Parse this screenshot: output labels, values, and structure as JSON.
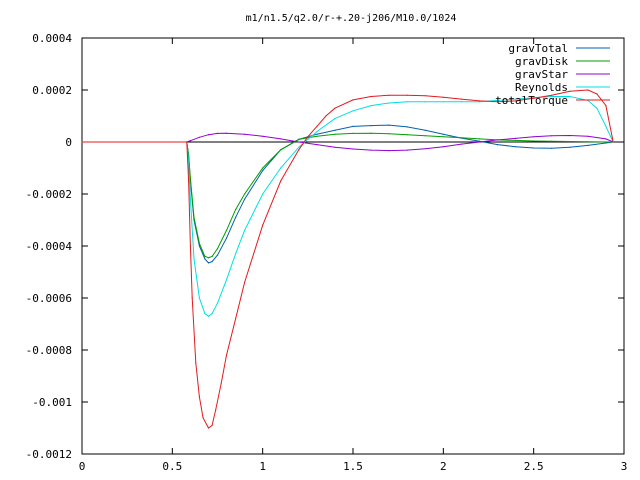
{
  "chart_data": {
    "type": "line",
    "title": "m1/n1.5/q2.0/r-+.20-j206/M10.0/1024",
    "xlabel": "",
    "ylabel": "",
    "xlim": [
      0,
      3
    ],
    "ylim": [
      -0.0012,
      0.0004
    ],
    "x_ticks": [
      0,
      0.5,
      1,
      1.5,
      2,
      2.5,
      3
    ],
    "x_tick_labels": [
      "0",
      "0.5",
      "1",
      "1.5",
      "2",
      "2.5",
      "3"
    ],
    "y_ticks": [
      0.0004,
      0.0002,
      0,
      -0.0002,
      -0.0004,
      -0.0006,
      -0.0008,
      -0.001,
      -0.0012
    ],
    "y_tick_labels": [
      "0.0004",
      "0.0002",
      "0",
      "-0.0002",
      "-0.0004",
      "-0.0006",
      "-0.0008",
      "-0.001",
      "-0.0012"
    ],
    "grid": false,
    "legend_position": "top-right",
    "series": [
      {
        "name": "gravTotal",
        "color": "#0060ad",
        "x": [
          0,
          0.58,
          0.59,
          0.6,
          0.62,
          0.65,
          0.68,
          0.7,
          0.72,
          0.75,
          0.8,
          0.85,
          0.9,
          1.0,
          1.1,
          1.2,
          1.3,
          1.4,
          1.5,
          1.6,
          1.7,
          1.8,
          1.9,
          2.0,
          2.1,
          2.2,
          2.3,
          2.4,
          2.5,
          2.6,
          2.7,
          2.8,
          2.9,
          2.94
        ],
        "values": [
          0,
          0,
          -5e-05,
          -0.00015,
          -0.0003,
          -0.0004,
          -0.00045,
          -0.000465,
          -0.00046,
          -0.000435,
          -0.00037,
          -0.00029,
          -0.00022,
          -0.00011,
          -3e-05,
          1e-05,
          3e-05,
          4.5e-05,
          6e-05,
          6.3e-05,
          6.5e-05,
          5.8e-05,
          4.5e-05,
          3e-05,
          1.5e-05,
          3e-06,
          -1e-05,
          -1.8e-05,
          -2.3e-05,
          -2.4e-05,
          -2e-05,
          -1.3e-05,
          -4e-06,
          0
        ]
      },
      {
        "name": "gravDisk",
        "color": "#009e00",
        "x": [
          0,
          0.58,
          0.59,
          0.6,
          0.62,
          0.65,
          0.68,
          0.7,
          0.72,
          0.75,
          0.8,
          0.85,
          0.9,
          1.0,
          1.1,
          1.2,
          1.3,
          1.4,
          1.5,
          1.6,
          1.7,
          1.8,
          1.9,
          2.0,
          2.1,
          2.2,
          2.3,
          2.4,
          2.5,
          2.6,
          2.7,
          2.8,
          2.9,
          2.94
        ],
        "values": [
          0,
          0,
          -5e-05,
          -0.00014,
          -0.00029,
          -0.00039,
          -0.00044,
          -0.000445,
          -0.00044,
          -0.00041,
          -0.00034,
          -0.00026,
          -0.0002,
          -0.0001,
          -3e-05,
          1e-05,
          2.2e-05,
          3e-05,
          3.3e-05,
          3.4e-05,
          3.2e-05,
          2.8e-05,
          2.4e-05,
          2e-05,
          1.6e-05,
          1.2e-05,
          8e-06,
          6e-06,
          4e-06,
          3e-06,
          2e-06,
          1e-06,
          0,
          0
        ]
      },
      {
        "name": "gravStar",
        "color": "#9400d3",
        "x": [
          0,
          0.58,
          0.6,
          0.65,
          0.7,
          0.75,
          0.8,
          0.9,
          1.0,
          1.1,
          1.2,
          1.3,
          1.4,
          1.5,
          1.6,
          1.7,
          1.8,
          1.9,
          2.0,
          2.1,
          2.2,
          2.3,
          2.4,
          2.5,
          2.6,
          2.7,
          2.8,
          2.9,
          2.94
        ],
        "values": [
          0,
          0,
          5e-06,
          1.8e-05,
          2.8e-05,
          3.3e-05,
          3.4e-05,
          3e-05,
          2.2e-05,
          1.2e-05,
          0,
          -1e-05,
          -2e-05,
          -2.7e-05,
          -3.1e-05,
          -3.3e-05,
          -3.1e-05,
          -2.6e-05,
          -1.8e-05,
          -8e-06,
          0,
          8e-06,
          1.4e-05,
          2e-05,
          2.4e-05,
          2.5e-05,
          2.2e-05,
          1.2e-05,
          0
        ]
      },
      {
        "name": "Reynolds",
        "color": "#00dfdf",
        "x": [
          0,
          0.58,
          0.59,
          0.6,
          0.62,
          0.65,
          0.68,
          0.7,
          0.72,
          0.75,
          0.8,
          0.85,
          0.9,
          1.0,
          1.1,
          1.2,
          1.3,
          1.4,
          1.5,
          1.6,
          1.7,
          1.8,
          1.9,
          2.0,
          2.1,
          2.2,
          2.3,
          2.4,
          2.5,
          2.6,
          2.7,
          2.8,
          2.85,
          2.9,
          2.94
        ],
        "values": [
          0,
          0,
          -8e-05,
          -0.00022,
          -0.00045,
          -0.0006,
          -0.00066,
          -0.00067,
          -0.00066,
          -0.00062,
          -0.00053,
          -0.00043,
          -0.00034,
          -0.0002,
          -0.0001,
          -2e-05,
          4e-05,
          9e-05,
          0.00012,
          0.00014,
          0.00015,
          0.000155,
          0.000155,
          0.000155,
          0.000155,
          0.000155,
          0.00016,
          0.000165,
          0.00017,
          0.000175,
          0.000175,
          0.00016,
          0.00013,
          6e-05,
          0
        ]
      },
      {
        "name": "totalTorque",
        "color": "#e41a1c",
        "x": [
          0,
          0.58,
          0.59,
          0.6,
          0.61,
          0.63,
          0.65,
          0.67,
          0.7,
          0.72,
          0.74,
          0.77,
          0.8,
          0.85,
          0.9,
          1.0,
          1.1,
          1.2,
          1.25,
          1.3,
          1.35,
          1.4,
          1.5,
          1.6,
          1.7,
          1.8,
          1.9,
          2.0,
          2.1,
          2.2,
          2.3,
          2.4,
          2.5,
          2.6,
          2.7,
          2.8,
          2.85,
          2.9,
          2.94
        ],
        "values": [
          0,
          0,
          -0.00015,
          -0.0004,
          -0.0006,
          -0.00085,
          -0.00098,
          -0.00106,
          -0.0011,
          -0.00109,
          -0.00103,
          -0.00093,
          -0.00082,
          -0.00068,
          -0.00054,
          -0.00032,
          -0.00015,
          -3e-05,
          2e-05,
          6e-05,
          0.0001,
          0.00013,
          0.000162,
          0.000175,
          0.00018,
          0.00018,
          0.000178,
          0.000172,
          0.000165,
          0.000158,
          0.000155,
          0.000158,
          0.000168,
          0.00018,
          0.000195,
          0.0002,
          0.000185,
          0.00014,
          0
        ]
      }
    ]
  }
}
